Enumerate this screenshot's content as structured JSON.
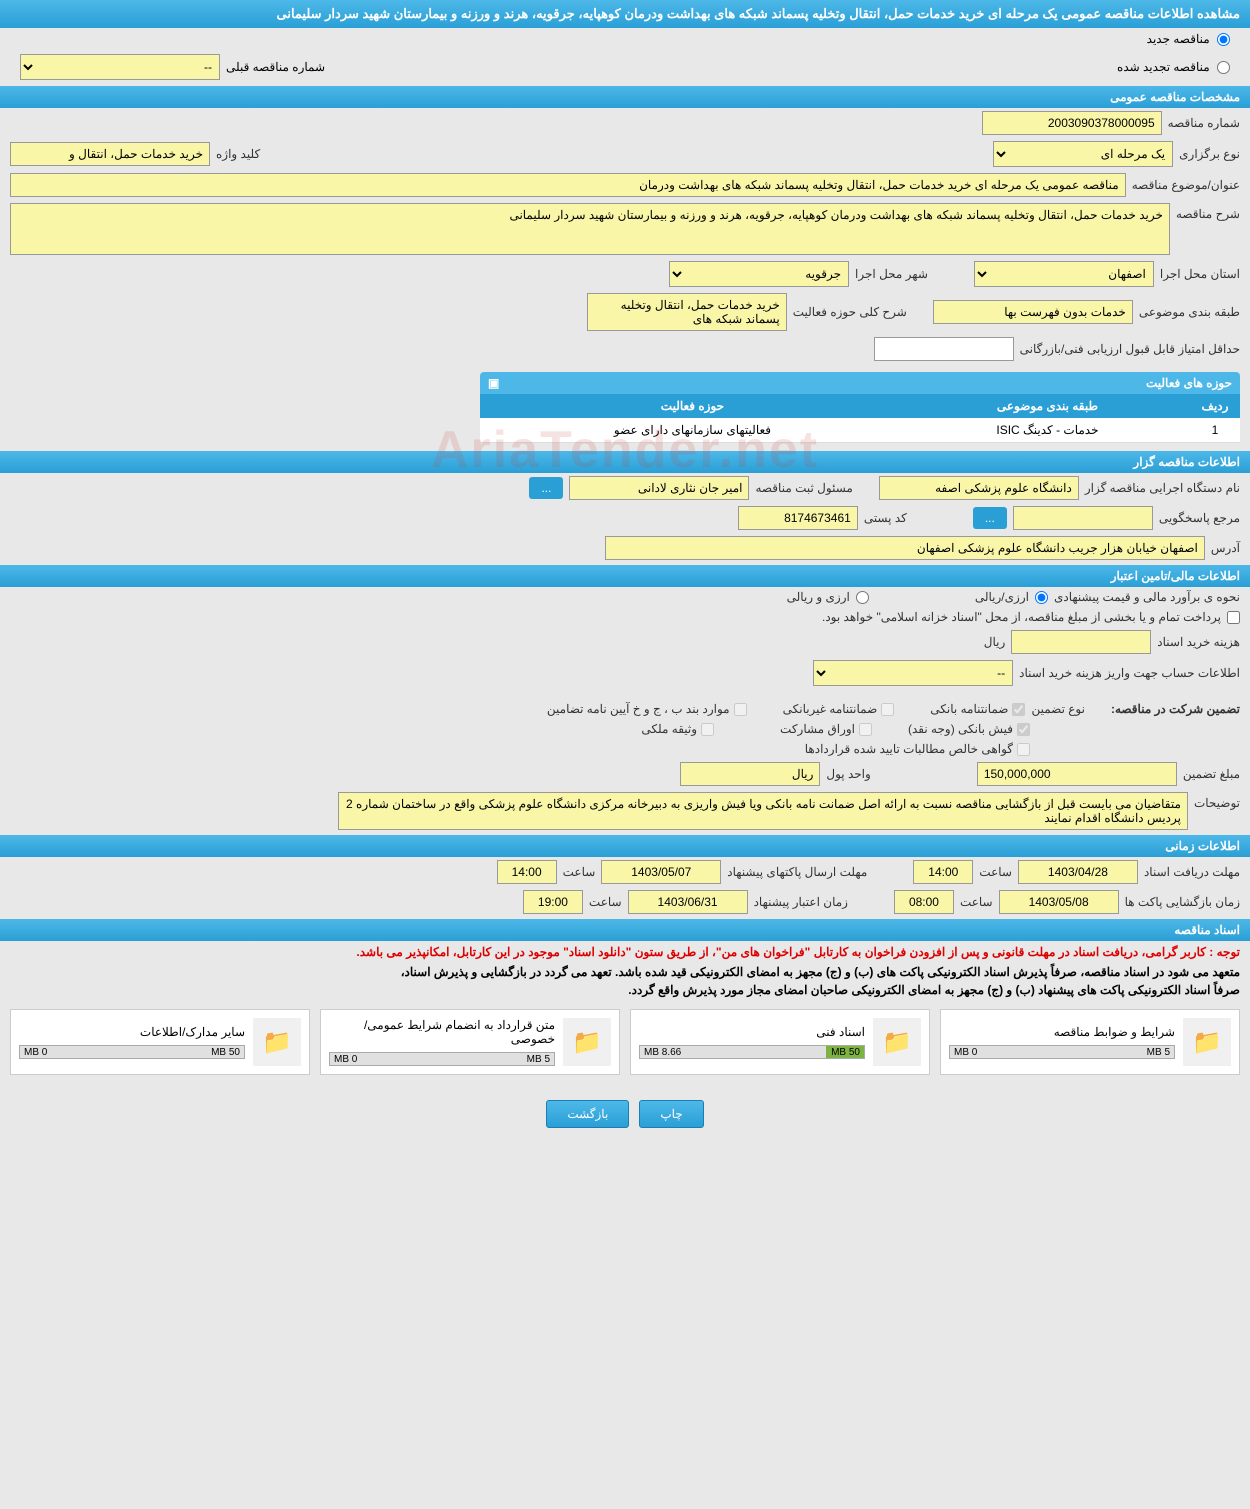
{
  "page_title": "مشاهده اطلاعات مناقصه عمومی یک مرحله ای خرید خدمات حمل، انتقال وتخلیه پسماند شبکه های بهداشت ودرمان کوهپایه، جرقویه، هرند و ورزنه و بیمارستان شهید سردار سلیمانی",
  "radio_options": {
    "new_tender": "مناقصه جدید",
    "renewed_tender": "مناقصه تجدید شده",
    "prev_tender_label": "شماره مناقصه قبلی",
    "prev_tender_value": "--"
  },
  "sections": {
    "general_spec": "مشخصات مناقصه عمومی",
    "tenderer_info": "اطلاعات مناقصه گزار",
    "financial_info": "اطلاعات مالی/تامین اعتبار",
    "time_info": "اطلاعات زمانی",
    "tender_docs": "اسناد مناقصه"
  },
  "general": {
    "tender_no_label": "شماره مناقصه",
    "tender_no": "2003090378000095",
    "holding_type_label": "نوع برگزاری",
    "holding_type": "یک مرحله ای",
    "keyword_label": "کلید واژه",
    "keyword": "خرید خدمات حمل، انتقال و",
    "subject_label": "عنوان/موضوع مناقصه",
    "subject": "مناقصه عمومی یک مرحله ای خرید خدمات حمل، انتقال وتخلیه پسماند شبکه های بهداشت ودرمان",
    "desc_label": "شرح مناقصه",
    "desc": "خرید خدمات حمل، انتقال وتخلیه پسماند شبکه های بهداشت ودرمان کوهپایه، جرقویه، هرند و ورزنه و بیمارستان شهید سردار سلیمانی",
    "province_label": "استان محل اجرا",
    "province": "اصفهان",
    "city_label": "شهر محل اجرا",
    "city": "جرقویه",
    "category_label": "طبقه بندی موضوعی",
    "category": "خدمات بدون فهرست بها",
    "activity_desc_label": "شرح کلی حوزه فعالیت",
    "activity_desc": "خرید خدمات حمل، انتقال وتخلیه پسماند شبکه های",
    "min_score_label": "حداقل امتیاز قابل قبول ارزیابی فنی/بازرگانی",
    "activity_areas_header": "حوزه های فعالیت",
    "table_headers": {
      "row": "ردیف",
      "category": "طبقه بندی موضوعی",
      "area": "حوزه فعالیت"
    },
    "table_row": {
      "row": "1",
      "category": "خدمات - کدینگ ISIC",
      "area": "فعالیتهای سازمانهای دارای عضو"
    }
  },
  "tenderer": {
    "org_label": "نام دستگاه اجرایی مناقصه گزار",
    "org": "دانشگاه علوم پزشکی اصفه",
    "responsible_label": "مسئول ثبت مناقصه",
    "responsible": "امیر جان نثاری لادانی",
    "respondent_label": "مرجع پاسخگویی",
    "postal_label": "کد پستی",
    "postal": "8174673461",
    "address_label": "آدرس",
    "address": "اصفهان خیابان هزار جریب دانشگاه علوم پزشکی اصفهان",
    "more_btn": "...",
    "more_btn2": "..."
  },
  "financial": {
    "estimate_label": "نحوه ی برآورد مالی و قیمت پیشنهادی",
    "currency_rial": "ارزی/ریالی",
    "currency_foreign": "ارزی و ریالی",
    "treasury_note": "پرداخت تمام و یا بخشی از مبلغ مناقصه، از محل \"اسناد خزانه اسلامی\" خواهد بود.",
    "doc_cost_label": "هزینه خرید اسناد",
    "rial_unit": "ریال",
    "account_info_label": "اطلاعات حساب جهت واریز هزینه خرید اسناد",
    "account_value": "--",
    "guarantee_label": "تضمین شرکت در مناقصه:",
    "guarantee_type_label": "نوع تضمین",
    "guarantees": {
      "bank_guarantee": "ضمانتنامه بانکی",
      "non_bank_guarantee": "ضمانتنامه غیربانکی",
      "regulation_items": "موارد بند ب ، ج و خ آیین نامه تضامین",
      "bank_receipt": "فیش بانکی (وجه نقد)",
      "participation_bonds": "اوراق مشارکت",
      "property_deed": "وثیقه ملکی",
      "net_receivables": "گواهی خالص مطالبات تایید شده قراردادها"
    },
    "guarantee_amount_label": "مبلغ تضمین",
    "guarantee_amount": "150,000,000",
    "currency_unit_label": "واحد پول",
    "currency_unit": "ریال",
    "explanation_label": "توضیحات",
    "explanation": "متقاضیان می بایست قبل از بازگشایی مناقصه نسبت به ارائه اصل ضمانت نامه بانکی ویا فیش واریزی به دبیرخانه مرکزی دانشگاه علوم پزشکی واقع در ساختمان شماره 2 پردیس دانشگاه اقدام نمایند"
  },
  "timing": {
    "receipt_deadline_label": "مهلت دریافت اسناد",
    "receipt_date": "1403/04/28",
    "receipt_time": "14:00",
    "send_deadline_label": "مهلت ارسال پاکتهای پیشنهاد",
    "send_date": "1403/05/07",
    "send_time": "14:00",
    "opening_label": "زمان بازگشایی پاکت ها",
    "opening_date": "1403/05/08",
    "opening_time": "08:00",
    "validity_label": "زمان اعتبار پیشنهاد",
    "validity_date": "1403/06/31",
    "validity_time": "19:00",
    "time_label": "ساعت"
  },
  "docs": {
    "notice_red": "توجه : کاربر گرامی، دریافت اسناد در مهلت قانونی و پس از افزودن فراخوان به کارتابل \"فراخوان های من\"، از طریق ستون \"دانلود اسناد\" موجود در این کارتابل، امکانپذیر می باشد.",
    "notice1": "متعهد می شود در اسناد مناقصه، صرفاً پذیرش اسناد الکترونیکی پاکت های (ب) و (ج) مجهز به امضای الکترونیکی قید شده باشد. تعهد می گردد در بازگشایی و پذیرش اسناد،",
    "notice2": "صرفاً اسناد الکترونیکی پاکت های پیشنهاد (ب) و (ج) مجهز به امضای الکترونیکی صاحبان امضای مجاز مورد پذیرش واقع گردد.",
    "cards": [
      {
        "title": "شرایط و ضوابط مناقصه",
        "used": "0 MB",
        "total": "5 MB",
        "fill": 0
      },
      {
        "title": "اسناد فنی",
        "used": "8.66 MB",
        "total": "50 MB",
        "fill": 17
      },
      {
        "title": "متن قرارداد به انضمام شرایط عمومی/خصوصی",
        "used": "0 MB",
        "total": "5 MB",
        "fill": 0
      },
      {
        "title": "سایر مدارک/اطلاعات",
        "used": "0 MB",
        "total": "50 MB",
        "fill": 0
      }
    ]
  },
  "buttons": {
    "print": "چاپ",
    "back": "بازگشت"
  },
  "watermark": "AriaTender.net"
}
